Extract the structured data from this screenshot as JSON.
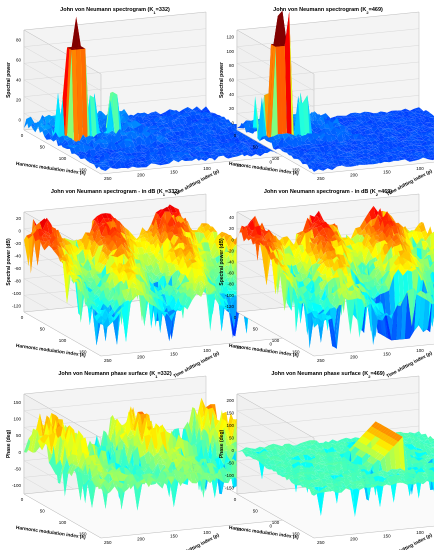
{
  "chart_data": [
    {
      "type": "surface",
      "title": "John von Neumann spectrogram (K",
      "title_sub": "1",
      "title_tail": "=332)",
      "xlabel": "Harmonic modulation index (k)",
      "ylabel": "Time shifting index (p)",
      "zlabel": "Spectral power",
      "kticks": [
        "0",
        "50",
        "100",
        "150"
      ],
      "pticks": [
        "250",
        "200",
        "150",
        "100",
        "50",
        "0"
      ],
      "zticks": [
        "0",
        "20",
        "40",
        "60",
        "80"
      ],
      "zlim": [
        0,
        95
      ],
      "colormap": "jet",
      "peak": 95
    },
    {
      "type": "surface",
      "title": "John von Neumann spectrogram (K",
      "title_sub": "2",
      "title_tail": "=469)",
      "xlabel": "Harmonic modulation index (k)",
      "ylabel": "Time shifting index (p)",
      "zlabel": "Spectral power",
      "kticks": [
        "0",
        "50",
        "100",
        "150"
      ],
      "pticks": [
        "250",
        "200",
        "150",
        "100",
        "50",
        "0"
      ],
      "zticks": [
        "0",
        "20",
        "40",
        "60",
        "80",
        "100",
        "120"
      ],
      "zlim": [
        0,
        130
      ],
      "colormap": "jet",
      "peak": 125
    },
    {
      "type": "surface",
      "title": "John von Neumann spectrogram - in dB (K",
      "title_sub": "1",
      "title_tail": "=332)",
      "xlabel": "Harmonic modulation index (k)",
      "ylabel": "Time shifting index (p)",
      "zlabel": "Spectral power (dB)",
      "kticks": [
        "0",
        "50",
        "100",
        "150"
      ],
      "pticks": [
        "250",
        "200",
        "150",
        "100",
        "50",
        "0"
      ],
      "zticks": [
        "-120",
        "-100",
        "-80",
        "-60",
        "-40",
        "-20",
        "0",
        "20"
      ],
      "zlim": [
        -130,
        25
      ],
      "colormap": "jet"
    },
    {
      "type": "surface",
      "title": "John von Neumann spectrogram - in dB (K",
      "title_sub": "2",
      "title_tail": "=469)",
      "xlabel": "Harmonic modulation index (k)",
      "ylabel": "Time shifting index (p)",
      "zlabel": "Spectral power (dB)",
      "kticks": [
        "0",
        "50",
        "100",
        "150"
      ],
      "pticks": [
        "250",
        "200",
        "150",
        "100",
        "50",
        "0"
      ],
      "zticks": [
        "-120",
        "-100",
        "-80",
        "-60",
        "-40",
        "-20",
        "0",
        "20",
        "40"
      ],
      "zlim": [
        -130,
        45
      ],
      "colormap": "jet"
    },
    {
      "type": "surface",
      "title": "John von Neumann phase surface (K",
      "title_sub": "1",
      "title_tail": "=332)",
      "xlabel": "Harmonic modulation index (k)",
      "ylabel": "Time shifting index (p)",
      "zlabel": "Phase (deg)",
      "kticks": [
        "0",
        "50",
        "100",
        "150"
      ],
      "pticks": [
        "250",
        "200",
        "150",
        "100",
        "50",
        "0"
      ],
      "zticks": [
        "-100",
        "-50",
        "0",
        "50",
        "100",
        "150"
      ],
      "zlim": [
        -180,
        180
      ],
      "colormap": "jet"
    },
    {
      "type": "surface",
      "title": "John von Neumann phase surface (K",
      "title_sub": "2",
      "title_tail": "=469)",
      "xlabel": "Harmonic modulation index (k)",
      "ylabel": "Time shifting index (p)",
      "zlabel": "Phase (deg)",
      "kticks": [
        "0",
        "50",
        "100",
        "150"
      ],
      "pticks": [
        "250",
        "200",
        "150",
        "100",
        "50",
        "0"
      ],
      "zticks": [
        "-150",
        "-100",
        "-50",
        "0",
        "50",
        "100",
        "150",
        "200"
      ],
      "zlim": [
        -180,
        220
      ],
      "colormap": "jet"
    }
  ]
}
